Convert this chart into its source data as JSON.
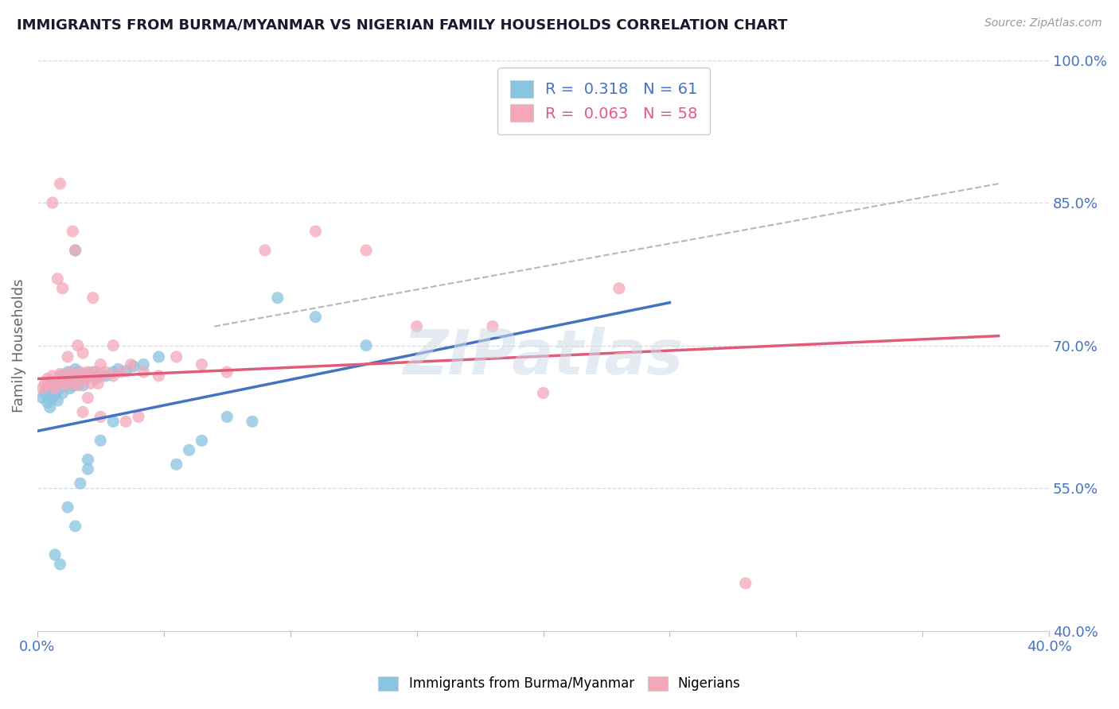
{
  "title": "IMMIGRANTS FROM BURMA/MYANMAR VS NIGERIAN FAMILY HOUSEHOLDS CORRELATION CHART",
  "source": "Source: ZipAtlas.com",
  "ylabel": "Family Households",
  "xlim": [
    0.0,
    0.4
  ],
  "ylim": [
    0.4,
    1.0
  ],
  "xticks": [
    0.0,
    0.05,
    0.1,
    0.15,
    0.2,
    0.25,
    0.3,
    0.35,
    0.4
  ],
  "yticks": [
    0.4,
    0.55,
    0.7,
    0.85,
    1.0
  ],
  "legend_entry1": "R =  0.318   N = 61",
  "legend_entry2": "R =  0.063   N = 58",
  "watermark": "ZIPatlas",
  "blue_color": "#89c4e1",
  "pink_color": "#f4a7b9",
  "blue_line_color": "#4472c4",
  "pink_line_color": "#e05c7a",
  "dashed_line_color": "#b0b8c8",
  "grid_color": "#d0dae8",
  "title_color": "#1a1a2e",
  "axis_label_color": "#4472c4",
  "blue_scatter_x": [
    0.002,
    0.003,
    0.004,
    0.004,
    0.005,
    0.005,
    0.006,
    0.006,
    0.007,
    0.007,
    0.008,
    0.008,
    0.009,
    0.009,
    0.01,
    0.01,
    0.011,
    0.011,
    0.012,
    0.012,
    0.013,
    0.013,
    0.014,
    0.015,
    0.015,
    0.016,
    0.016,
    0.017,
    0.018,
    0.018,
    0.019,
    0.02,
    0.021,
    0.022,
    0.023,
    0.025,
    0.027,
    0.03,
    0.032,
    0.035,
    0.038,
    0.042,
    0.048,
    0.055,
    0.06,
    0.065,
    0.075,
    0.085,
    0.095,
    0.11,
    0.13,
    0.015,
    0.02,
    0.025,
    0.03,
    0.015,
    0.012,
    0.02,
    0.017,
    0.009,
    0.007
  ],
  "blue_scatter_y": [
    0.645,
    0.65,
    0.655,
    0.64,
    0.66,
    0.635,
    0.645,
    0.655,
    0.66,
    0.648,
    0.642,
    0.66,
    0.668,
    0.655,
    0.665,
    0.65,
    0.658,
    0.668,
    0.662,
    0.672,
    0.655,
    0.665,
    0.658,
    0.668,
    0.675,
    0.66,
    0.672,
    0.665,
    0.67,
    0.658,
    0.665,
    0.67,
    0.668,
    0.672,
    0.665,
    0.67,
    0.668,
    0.672,
    0.675,
    0.673,
    0.678,
    0.68,
    0.688,
    0.575,
    0.59,
    0.6,
    0.625,
    0.62,
    0.75,
    0.73,
    0.7,
    0.51,
    0.58,
    0.6,
    0.62,
    0.8,
    0.53,
    0.57,
    0.555,
    0.47,
    0.48
  ],
  "pink_scatter_x": [
    0.002,
    0.003,
    0.004,
    0.005,
    0.006,
    0.007,
    0.008,
    0.009,
    0.01,
    0.011,
    0.012,
    0.013,
    0.014,
    0.015,
    0.016,
    0.017,
    0.018,
    0.019,
    0.02,
    0.021,
    0.022,
    0.023,
    0.024,
    0.025,
    0.027,
    0.03,
    0.033,
    0.037,
    0.042,
    0.048,
    0.055,
    0.065,
    0.075,
    0.09,
    0.11,
    0.13,
    0.15,
    0.18,
    0.2,
    0.23,
    0.025,
    0.018,
    0.012,
    0.02,
    0.015,
    0.008,
    0.01,
    0.016,
    0.022,
    0.03,
    0.04,
    0.018,
    0.025,
    0.014,
    0.009,
    0.006,
    0.035,
    0.28
  ],
  "pink_scatter_y": [
    0.655,
    0.66,
    0.665,
    0.658,
    0.668,
    0.655,
    0.662,
    0.67,
    0.665,
    0.658,
    0.668,
    0.672,
    0.66,
    0.668,
    0.658,
    0.672,
    0.665,
    0.668,
    0.672,
    0.66,
    0.668,
    0.672,
    0.66,
    0.668,
    0.672,
    0.668,
    0.672,
    0.68,
    0.672,
    0.668,
    0.688,
    0.68,
    0.672,
    0.8,
    0.82,
    0.8,
    0.72,
    0.72,
    0.65,
    0.76,
    0.68,
    0.692,
    0.688,
    0.645,
    0.8,
    0.77,
    0.76,
    0.7,
    0.75,
    0.7,
    0.625,
    0.63,
    0.625,
    0.82,
    0.87,
    0.85,
    0.62,
    0.45
  ],
  "blue_line_x": [
    0.0,
    0.25
  ],
  "blue_line_y": [
    0.61,
    0.745
  ],
  "pink_line_x": [
    0.0,
    0.38
  ],
  "pink_line_y": [
    0.665,
    0.71
  ],
  "dash_line_x": [
    0.07,
    0.38
  ],
  "dash_line_y": [
    0.72,
    0.87
  ]
}
